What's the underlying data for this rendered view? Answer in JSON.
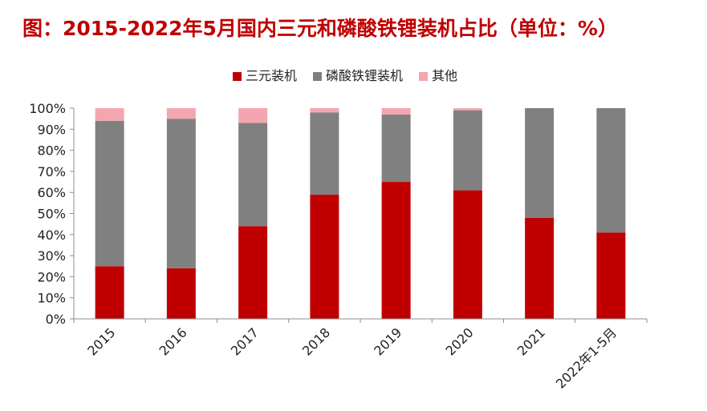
{
  "chart_data": {
    "type": "bar",
    "stacked": true,
    "title": "图：2015-2022年5月国内三元和磷酸铁锂装机占比（单位：%）",
    "categories": [
      "2015",
      "2016",
      "2017",
      "2018",
      "2019",
      "2020",
      "2021",
      "2022年1-5月"
    ],
    "series": [
      {
        "name": "三元装机",
        "color": "#c00000",
        "values": [
          25,
          24,
          44,
          59,
          65,
          61,
          48,
          41
        ]
      },
      {
        "name": "磷酸铁锂装机",
        "color": "#808080",
        "values": [
          69,
          71,
          49,
          39,
          32,
          38,
          52,
          59
        ]
      },
      {
        "name": "其他",
        "color": "#f4a6b0",
        "values": [
          6,
          5,
          7,
          2,
          3,
          1,
          0,
          0
        ]
      }
    ],
    "yticks": [
      "0%",
      "10%",
      "20%",
      "30%",
      "40%",
      "50%",
      "60%",
      "70%",
      "80%",
      "90%",
      "100%"
    ],
    "ylim": [
      0,
      100
    ],
    "legend_position": "top-center",
    "xlabel": "",
    "ylabel": ""
  }
}
